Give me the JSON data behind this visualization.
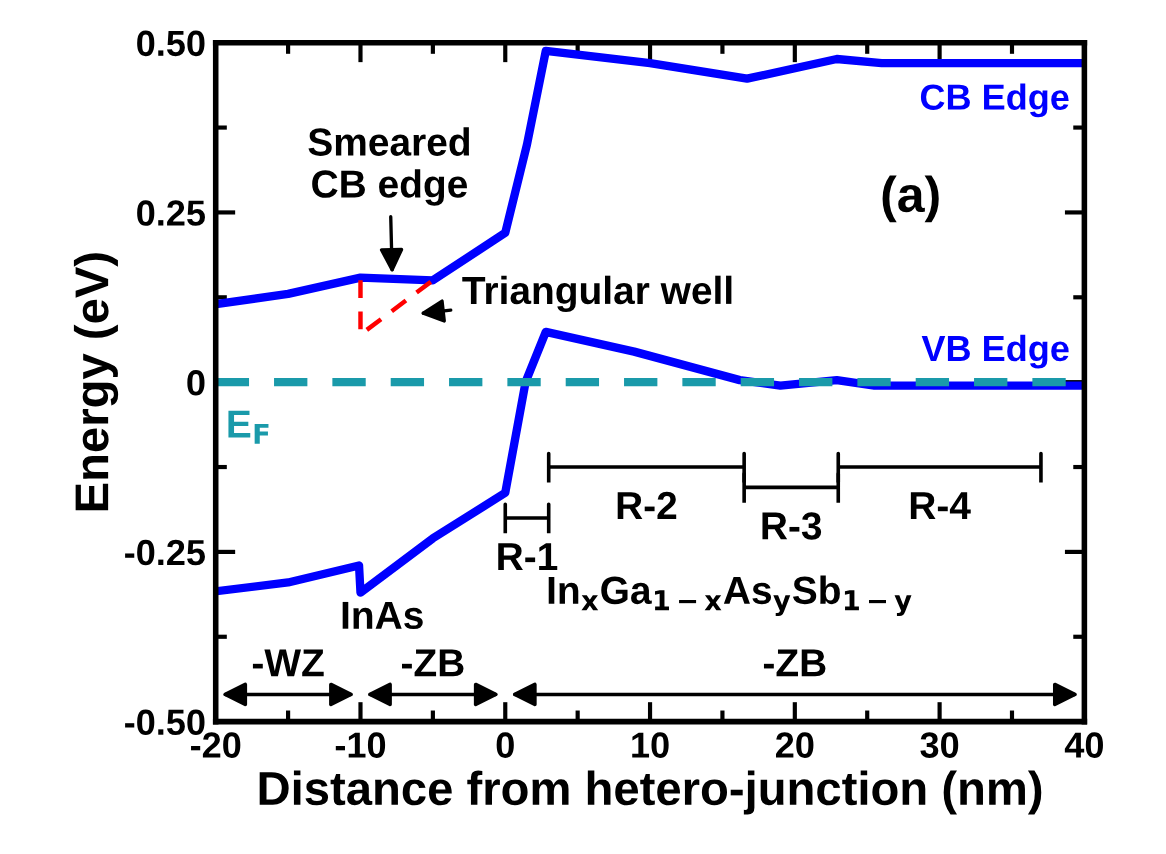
{
  "chart_data": {
    "type": "line",
    "xlabel": "Distance from hetero-junction (nm)",
    "ylabel": "Energy (eV)",
    "xlim": [
      -20,
      40
    ],
    "xticks": [
      -20,
      -10,
      0,
      10,
      20,
      30,
      40
    ],
    "ylim": [
      -0.5,
      0.5
    ],
    "yticks": [
      {
        "value": -0.5,
        "label": "-0.50"
      },
      {
        "value": -0.25,
        "label": "-0.25"
      },
      0,
      {
        "value": 0.25,
        "label": "0.25"
      },
      {
        "value": 0.5,
        "label": "0.50"
      }
    ],
    "grid": false,
    "legend": false,
    "marker": "none",
    "line_style": "solid",
    "series": [
      {
        "name": "CB Edge",
        "color": "#0000ff",
        "x": [
          -20,
          -15,
          -10,
          -5,
          0,
          1.5,
          2.8,
          10,
          16.7,
          22.9,
          26,
          40
        ],
        "values": [
          0.115,
          0.13,
          0.154,
          0.15,
          0.22,
          0.35,
          0.488,
          0.47,
          0.447,
          0.476,
          0.47,
          0.47
        ]
      },
      {
        "name": "VB Edge",
        "color": "#0000ff",
        "x": [
          -20,
          -15,
          -10.1,
          -10,
          -5,
          0,
          1.4,
          2.8,
          8.9,
          16.2,
          19,
          22.9,
          25.5,
          40
        ],
        "values": [
          -0.308,
          -0.295,
          -0.27,
          -0.31,
          -0.23,
          -0.163,
          0.0,
          0.074,
          0.045,
          0.003,
          -0.005,
          0.003,
          -0.005,
          -0.005
        ]
      }
    ],
    "ref_lines": [
      {
        "axis": "y",
        "value": 0,
        "label": "E$_{F}$",
        "color": "#1a9aaa",
        "line_style": "dashed"
      }
    ],
    "annotations": [
      {
        "text": "Smeared\nCB edge",
        "x": -7.8,
        "y": 0.152
      },
      "Triangular well",
      "(a)",
      "R-1",
      "R-2",
      "R-3",
      "R-4",
      "InAs",
      "In$_{x}$Ga$_{1−x}$As$_{y}$Sb$_{1−y}$",
      "-WZ",
      "-ZB",
      "-ZB"
    ]
  }
}
